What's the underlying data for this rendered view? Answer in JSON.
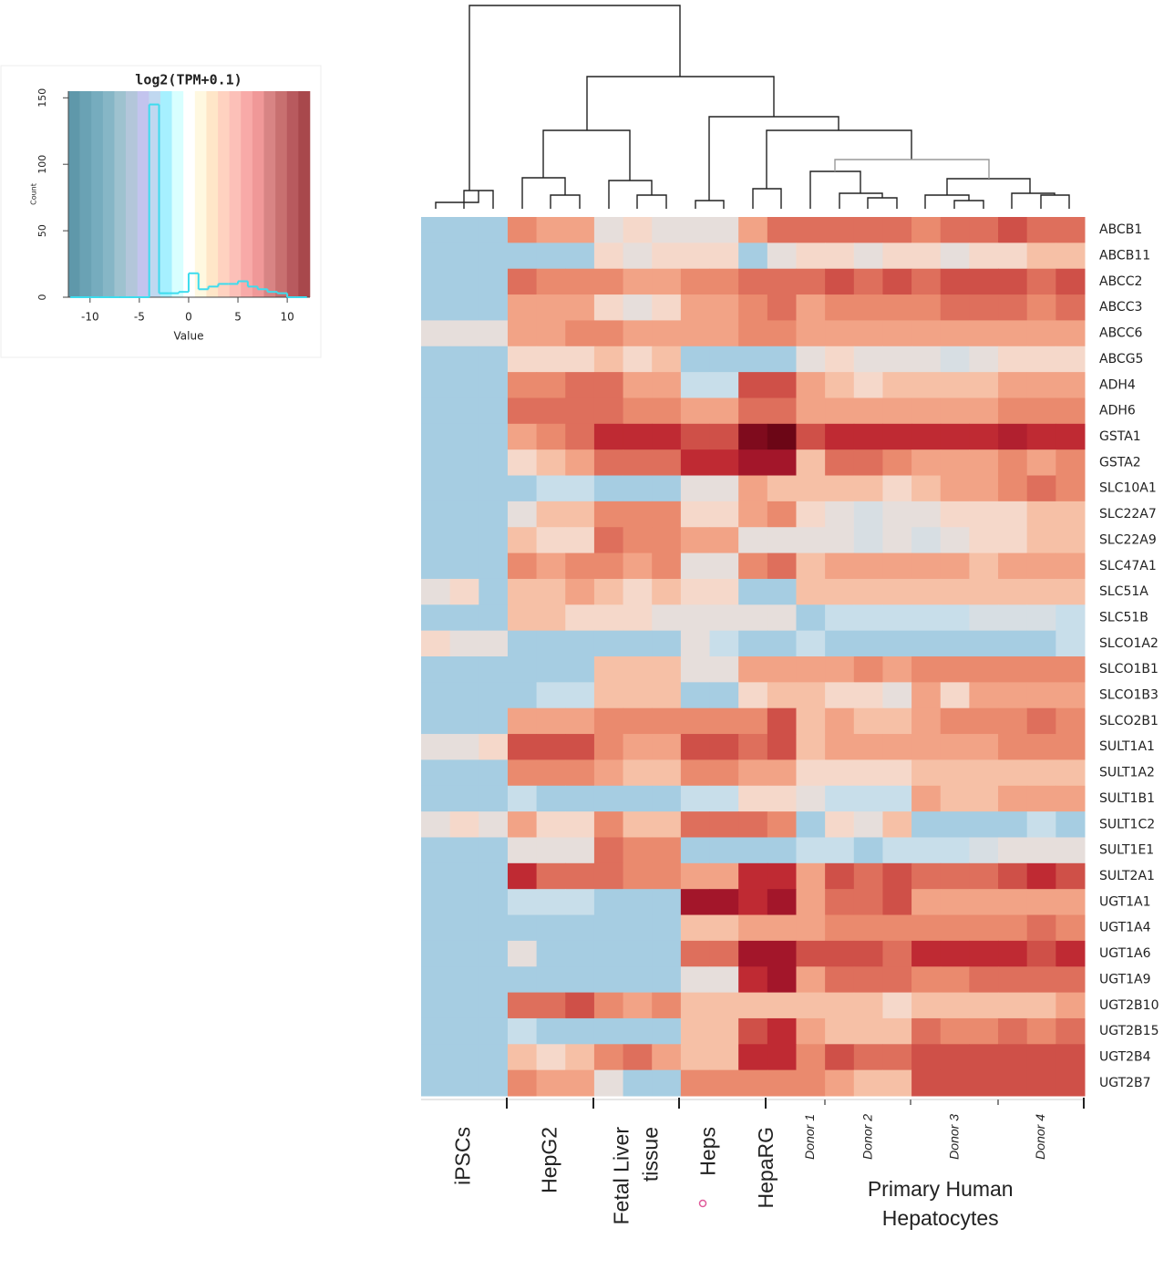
{
  "chart_data": [
    {
      "type": "heatmap",
      "rows": [
        "ABCB1",
        "ABCB11",
        "ABCC2",
        "ABCC3",
        "ABCC6",
        "ABCG5",
        "ADH4",
        "ADH6",
        "GSTA1",
        "GSTA2",
        "SLC10A1",
        "SLC22A7",
        "SLC22A9",
        "SLC47A1",
        "SLC51A",
        "SLC51B",
        "SLCO1A2",
        "SLCO1B1",
        "SLCO1B3",
        "SLCO2B1",
        "SULT1A1",
        "SULT1A2",
        "SULT1B1",
        "SULT1C2",
        "SULT1E1",
        "SULT2A1",
        "UGT1A1",
        "UGT1A4",
        "UGT1A6",
        "UGT1A9",
        "UGT2B10",
        "UGT2B15",
        "UGT2B4",
        "UGT2B7"
      ],
      "groups": [
        {
          "label_lines": [
            "iPSCs"
          ],
          "columns": 3
        },
        {
          "label_lines": [
            "HepG2"
          ],
          "columns": 3
        },
        {
          "label_lines": [
            "Fetal Liver",
            "tissue"
          ],
          "columns": 3
        },
        {
          "label_lines": [
            "Heps"
          ],
          "columns": 2
        },
        {
          "label_lines": [
            "HepaRG"
          ],
          "columns": 2
        },
        {
          "label_lines": [
            "Primary Human",
            "Hepatocytes"
          ],
          "columns": 10,
          "subgroups": [
            {
              "label": "Donor 1",
              "columns": 1
            },
            {
              "label": "Donor 2",
              "columns": 3
            },
            {
              "label": "Donor 3",
              "columns": 3
            },
            {
              "label": "Donor 4",
              "columns": 3
            }
          ]
        }
      ],
      "color_scale": {
        "values": [
          -4,
          -2,
          0,
          1,
          2,
          3,
          4,
          5,
          6,
          7,
          8,
          10
        ],
        "colors": [
          "#a6cde2",
          "#c8deea",
          "#e6dedb",
          "#f5d8ca",
          "#f6c0a6",
          "#f2a386",
          "#ea8a6e",
          "#de6f5c",
          "#cf5048",
          "#bf2a33",
          "#a3162a",
          "#5a000f"
        ]
      },
      "values": [
        [
          -4,
          -4,
          -4,
          4,
          3,
          3,
          0,
          1,
          0,
          0,
          0,
          3,
          5,
          5,
          5,
          5,
          5,
          4,
          5,
          5,
          6,
          5,
          5
        ],
        [
          -4,
          -4,
          -4,
          -4,
          -4,
          -4,
          1,
          0,
          1,
          1,
          1,
          -4,
          0,
          1,
          1,
          0,
          1,
          1,
          0,
          1,
          1,
          2,
          2
        ],
        [
          -4,
          -4,
          -4,
          5,
          4,
          4,
          4,
          3,
          3,
          4,
          4,
          5,
          5,
          5,
          6,
          5,
          6,
          5,
          6,
          6,
          6,
          5,
          6
        ],
        [
          -4,
          -4,
          -4,
          3,
          3,
          3,
          1,
          0,
          1,
          3,
          3,
          4,
          5,
          3,
          4,
          4,
          4,
          4,
          5,
          5,
          5,
          4,
          5
        ],
        [
          0,
          0,
          0,
          3,
          3,
          4,
          4,
          3,
          3,
          3,
          3,
          4,
          4,
          3,
          3,
          3,
          3,
          3,
          3,
          3,
          3,
          3,
          3
        ],
        [
          -4,
          -4,
          -4,
          1,
          1,
          1,
          2,
          1,
          2,
          -4,
          -4,
          -4,
          -4,
          0,
          1,
          0,
          0,
          0,
          -1,
          0,
          1,
          1,
          1
        ],
        [
          -4,
          -4,
          -4,
          4,
          4,
          5,
          5,
          3,
          3,
          -2,
          -2,
          6,
          6,
          3,
          2,
          1,
          2,
          2,
          2,
          2,
          3,
          3,
          3
        ],
        [
          -4,
          -4,
          -4,
          5,
          5,
          5,
          5,
          4,
          4,
          3,
          3,
          5,
          5,
          3,
          3,
          3,
          3,
          3,
          3,
          3,
          4,
          4,
          4
        ],
        [
          -4,
          -4,
          -4,
          3,
          4,
          5,
          7,
          7,
          7,
          6,
          6,
          9,
          9.5,
          6,
          7,
          7,
          7,
          7,
          7,
          7,
          7.5,
          7,
          7
        ],
        [
          -4,
          -4,
          -4,
          1,
          2,
          3,
          5,
          5,
          5,
          7,
          7,
          8,
          8,
          2,
          5,
          5,
          4,
          3,
          3,
          3,
          4,
          3,
          4
        ],
        [
          -4,
          -4,
          -4,
          -4,
          -2,
          -2,
          -4,
          -4,
          -4,
          0,
          0,
          3,
          2,
          2,
          2,
          2,
          1,
          2,
          3,
          3,
          4,
          5,
          4
        ],
        [
          -4,
          -4,
          -4,
          0,
          2,
          2,
          4,
          4,
          4,
          1,
          1,
          3,
          4,
          1,
          0,
          -1,
          0,
          0,
          1,
          1,
          1,
          2,
          2
        ],
        [
          -4,
          -4,
          -4,
          2,
          1,
          1,
          5,
          4,
          4,
          3,
          3,
          0,
          0,
          0,
          0,
          -1,
          0,
          -1,
          0,
          1,
          1,
          2,
          2
        ],
        [
          -4,
          -4,
          -4,
          4,
          3,
          4,
          4,
          3,
          4,
          0,
          0,
          4,
          5,
          2,
          3,
          3,
          3,
          3,
          3,
          2,
          3,
          3,
          3
        ],
        [
          0,
          1,
          -4,
          2,
          2,
          3,
          2,
          1,
          2,
          1,
          1,
          -4,
          -4,
          2,
          2,
          2,
          2,
          2,
          2,
          2,
          2,
          2,
          2
        ],
        [
          -4,
          -4,
          -4,
          2,
          2,
          1,
          1,
          1,
          0,
          0,
          0,
          0,
          0,
          -4,
          -2,
          -2,
          -2,
          -2,
          -2,
          -1,
          -1,
          -1,
          -2
        ],
        [
          1,
          0,
          0,
          -4,
          -4,
          -4,
          -4,
          -4,
          -4,
          0,
          -2,
          -4,
          -4,
          -2,
          -4,
          -4,
          -4,
          -4,
          -4,
          -4,
          -4,
          -4,
          -2
        ],
        [
          -4,
          -4,
          -4,
          -4,
          -4,
          -4,
          2,
          2,
          2,
          0,
          0,
          3,
          3,
          3,
          3,
          4,
          3,
          4,
          4,
          4,
          4,
          4,
          4
        ],
        [
          -4,
          -4,
          -4,
          -4,
          -2,
          -2,
          2,
          2,
          2,
          -4,
          -4,
          1,
          2,
          2,
          1,
          1,
          0,
          3,
          1,
          3,
          3,
          3,
          3
        ],
        [
          -4,
          -4,
          -4,
          3,
          3,
          3,
          4,
          4,
          4,
          4,
          4,
          4,
          6,
          2,
          3,
          2,
          2,
          3,
          4,
          4,
          4,
          5,
          4
        ],
        [
          0,
          0,
          1,
          6,
          6,
          6,
          4,
          3,
          3,
          6,
          6,
          5,
          6,
          2,
          3,
          3,
          3,
          3,
          3,
          3,
          4,
          4,
          4
        ],
        [
          -4,
          -4,
          -4,
          4,
          4,
          4,
          3,
          2,
          2,
          4,
          4,
          3,
          3,
          1,
          1,
          1,
          1,
          2,
          2,
          2,
          2,
          2,
          2
        ],
        [
          -4,
          -4,
          -4,
          -2,
          -4,
          -4,
          -4,
          -4,
          -4,
          -2,
          -2,
          1,
          1,
          0,
          -2,
          -2,
          -2,
          3,
          2,
          2,
          3,
          3,
          3
        ],
        [
          0,
          1,
          0,
          3,
          1,
          1,
          4,
          2,
          2,
          5,
          5,
          5,
          4,
          -4,
          1,
          0,
          2,
          -4,
          -4,
          -4,
          -4,
          -2,
          -4
        ],
        [
          -4,
          -4,
          -4,
          0,
          0,
          0,
          5,
          4,
          4,
          -4,
          -4,
          -4,
          -4,
          -2,
          -2,
          -4,
          -2,
          -2,
          -2,
          -1,
          0,
          0,
          0
        ],
        [
          -4,
          -4,
          -4,
          7,
          5,
          5,
          5,
          4,
          4,
          3,
          3,
          7,
          7,
          3,
          6,
          5,
          6,
          5,
          5,
          5,
          6,
          7,
          6
        ],
        [
          -4,
          -4,
          -4,
          -2,
          -2,
          -2,
          -4,
          -4,
          -4,
          8,
          8,
          7,
          8,
          3,
          5,
          5,
          6,
          3,
          3,
          3,
          3,
          3,
          3
        ],
        [
          -4,
          -4,
          -4,
          -4,
          -4,
          -4,
          -4,
          -4,
          -4,
          2,
          2,
          3,
          3,
          3,
          4,
          4,
          4,
          4,
          4,
          4,
          4,
          5,
          4
        ],
        [
          -4,
          -4,
          -4,
          0,
          -4,
          -4,
          -4,
          -4,
          -4,
          5,
          5,
          8,
          8,
          6,
          6,
          6,
          5,
          7,
          7,
          7,
          7,
          6,
          7
        ],
        [
          -4,
          -4,
          -4,
          -4,
          -4,
          -4,
          -4,
          -4,
          -4,
          0,
          0,
          7,
          8,
          3,
          5,
          5,
          5,
          4,
          4,
          5,
          5,
          5,
          5
        ],
        [
          -4,
          -4,
          -4,
          5,
          5,
          6,
          4,
          3,
          4,
          2,
          2,
          2,
          2,
          2,
          2,
          2,
          1,
          2,
          2,
          2,
          2,
          2,
          3
        ],
        [
          -4,
          -4,
          -4,
          -2,
          -4,
          -4,
          -4,
          -4,
          -4,
          2,
          2,
          6,
          7,
          3,
          2,
          2,
          2,
          5,
          4,
          4,
          5,
          4,
          5
        ],
        [
          -4,
          -4,
          -4,
          2,
          1,
          2,
          4,
          5,
          3,
          2,
          2,
          7,
          7,
          4,
          6,
          5,
          5,
          6,
          6,
          6,
          6,
          6,
          6
        ],
        [
          -4,
          -4,
          -4,
          4,
          3,
          3,
          0,
          -4,
          -4,
          4,
          4,
          4,
          4,
          4,
          3,
          2,
          2,
          6,
          6,
          6,
          6,
          6,
          6
        ]
      ]
    },
    {
      "type": "histogram",
      "title": "log2(TPM+0.1)",
      "x_label": "Value",
      "y_label": "Count",
      "bins": [
        -12,
        -11,
        -10,
        -9,
        -8,
        -7,
        -6,
        -5,
        -4,
        -3,
        -2,
        -1,
        0,
        1,
        2,
        3,
        4,
        5,
        6,
        7,
        8,
        9,
        10,
        11,
        12
      ],
      "counts": [
        0,
        0,
        0,
        0,
        0,
        0,
        0,
        0,
        145,
        3,
        3,
        4,
        18,
        6,
        8,
        10,
        10,
        12,
        8,
        6,
        4,
        3,
        0,
        0
      ],
      "color": "#3ddcee",
      "band_colors": [
        "#5f98aa",
        "#6aa2b4",
        "#76acbe",
        "#86b6c6",
        "#9ec2cf",
        "#b3c6da",
        "#c3c4ee",
        "#c0d8f0",
        "#a6f0ff",
        "#d8ffff",
        "#ffffff",
        "#fff8e0",
        "#ffe6c8",
        "#ffd2c0",
        "#fcc0b8",
        "#f8aaa8",
        "#f09898",
        "#d88484",
        "#c87070",
        "#b85a5e",
        "#a8484c"
      ],
      "xlim": [
        -12.2,
        12.3
      ],
      "ylim": [
        0,
        155
      ],
      "xticks": [
        -10,
        -5,
        0,
        5,
        10
      ],
      "yticks": [
        0,
        50,
        100,
        150
      ]
    }
  ]
}
